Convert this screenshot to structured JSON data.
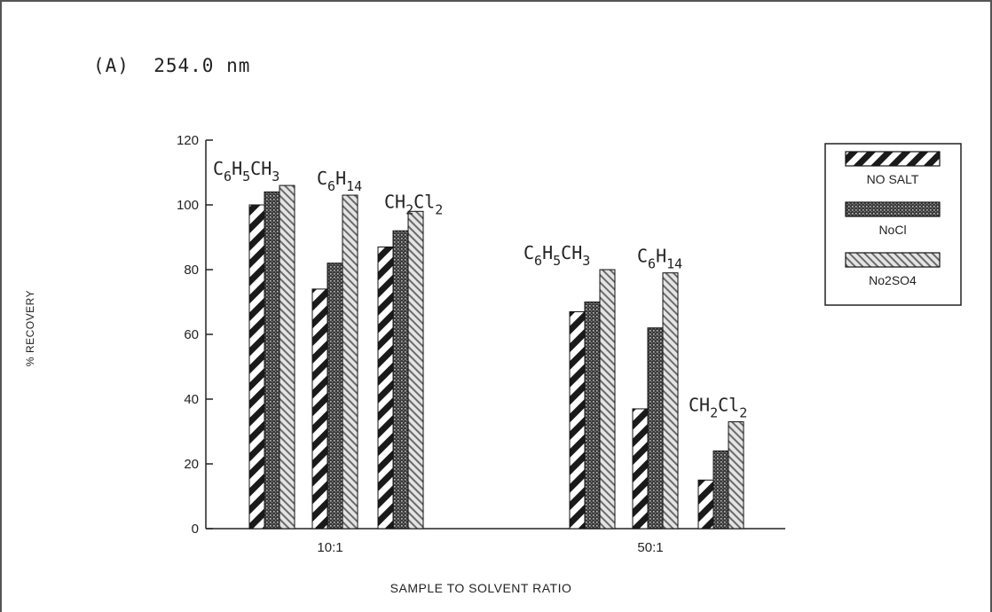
{
  "panel_title": "(A)  254.0 nm",
  "chart_data": {
    "type": "bar",
    "categories": [
      "10:1",
      "50:1"
    ],
    "xlabel": "SAMPLE TO SOLVENT RATIO",
    "ylabel": "% RECOVERY",
    "ylim": [
      0,
      120
    ],
    "yticks": [
      0,
      20,
      40,
      60,
      80,
      100,
      120
    ],
    "grid": false,
    "legend_position": "top-right",
    "groups": [
      {
        "category": "10:1",
        "solvents": [
          {
            "sub": [
              "C",
              "6",
              "H",
              "5",
              "CH",
              "3"
            ],
            "values": [
              100,
              104,
              106
            ]
          },
          {
            "sub": [
              "C",
              "6",
              "H",
              "14"
            ],
            "values": [
              74,
              82,
              103
            ]
          },
          {
            "sub": [
              "CH",
              "2",
              "Cl",
              "2"
            ],
            "values": [
              87,
              92,
              98
            ]
          }
        ]
      },
      {
        "category": "50:1",
        "solvents": [
          {
            "sub": [
              "C",
              "6",
              "H",
              "5",
              "CH",
              "3"
            ],
            "values": [
              67,
              70,
              80
            ]
          },
          {
            "sub": [
              "C",
              "6",
              "H",
              "14"
            ],
            "values": [
              37,
              62,
              79
            ]
          },
          {
            "sub": [
              "CH",
              "2",
              "Cl",
              "2"
            ],
            "values": [
              15,
              24,
              33
            ]
          }
        ]
      }
    ],
    "series": [
      {
        "name": "NO SALT",
        "pattern": "diagonal-back"
      },
      {
        "name": "NaCl",
        "pattern": "dense-dots"
      },
      {
        "name": "Na2SO4",
        "pattern": "diagonal-fwd"
      }
    ],
    "legend_labels": [
      "NO SALT",
      "NoCl",
      "No2SO4"
    ]
  }
}
